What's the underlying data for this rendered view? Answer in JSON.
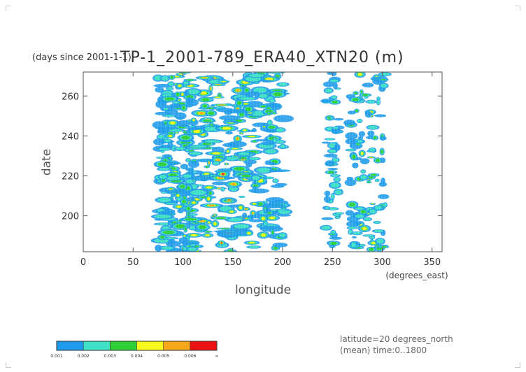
{
  "chart_data": {
    "type": "heatmap",
    "title": "TP-1_2001-789_ERA40_XTN20 (m)",
    "units_label": "(days since 2001-1-1)",
    "xlabel": "longitude",
    "x_units": "(degrees_east)",
    "ylabel": "date",
    "xlim": [
      0,
      360
    ],
    "ylim": [
      182,
      272
    ],
    "x_ticks": [
      "0",
      "50",
      "100",
      "150",
      "200",
      "250",
      "300",
      "350"
    ],
    "y_ticks": [
      "200",
      "220",
      "240",
      "260"
    ],
    "colorbar": {
      "levels": [
        "0.001",
        "0.002",
        "0.003",
        "0.004",
        "0.005",
        "0.006",
        "∞"
      ],
      "colors": [
        "#1e9bea",
        "#40e0c6",
        "#2fcf3a",
        "#f8f81a",
        "#f7a818",
        "#ee1111"
      ]
    },
    "annotations": [
      "latitude=20 degrees_north",
      "(mean) time:0..1800"
    ]
  }
}
